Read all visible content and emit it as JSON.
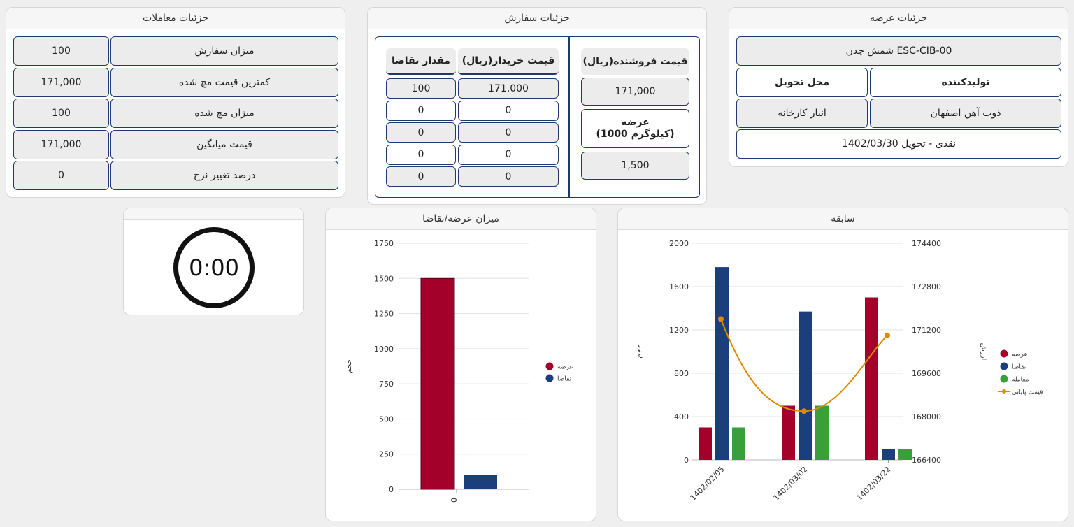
{
  "transactions": {
    "title": "جزئیات معاملات",
    "rows": [
      {
        "label": "میزان سفارش",
        "value": "100"
      },
      {
        "label": "کمترین قیمت مچ شده",
        "value": "171,000"
      },
      {
        "label": "میزان مچ شده",
        "value": "100"
      },
      {
        "label": "قیمت میانگین",
        "value": "171,000"
      },
      {
        "label": "درصد تغییر نرخ",
        "value": "0"
      }
    ]
  },
  "order": {
    "title": "جزئیات سفارش",
    "seller_header": "قیمت فروشنده(ریال)",
    "seller_price": "171,000",
    "supply_label": "عرضه",
    "supply_unit": "(1000 کیلوگرم)",
    "supply_value": "1,500",
    "buyer_price_header": "قیمت خریدار(ریال)",
    "demand_qty_header": "مقدار تقاضا",
    "rows": [
      {
        "price": "171,000",
        "qty": "100"
      },
      {
        "price": "0",
        "qty": "0"
      },
      {
        "price": "0",
        "qty": "0"
      },
      {
        "price": "0",
        "qty": "0"
      },
      {
        "price": "0",
        "qty": "0"
      }
    ]
  },
  "supply": {
    "title": "جزئیات عرضه",
    "product": "شمش چدن ESC-CIB-00",
    "producer_header": "تولیدکننده",
    "delivery_header": "محل تحویل",
    "producer": "ذوب آهن اصفهان",
    "delivery": "انبار کارخانه",
    "terms": "نقدی - تحویل 1402/03/30"
  },
  "timer": {
    "value": "0:00"
  },
  "colors": {
    "supply": "#a3002a",
    "demand": "#1b3f7c",
    "trade": "#3a9e3a",
    "price": "#e08a00"
  },
  "chart_data": [
    {
      "type": "bar",
      "title": "میزان عرضه/تقاضا",
      "ylabel": "حجم",
      "categories": [
        "0"
      ],
      "ylim": [
        0,
        1750
      ],
      "yticks": [
        0,
        250,
        500,
        750,
        1000,
        1250,
        1500,
        1750
      ],
      "series": [
        {
          "name": "عرضه",
          "values": [
            1500
          ]
        },
        {
          "name": "تقاضا",
          "values": [
            100
          ]
        }
      ],
      "legend": "right"
    },
    {
      "type": "bar",
      "title": "سابقه",
      "ylabel": "حجم",
      "y2label": "ارزش",
      "categories": [
        "1402/02/05",
        "1402/03/02",
        "1402/03/22"
      ],
      "ylim": [
        0,
        2000
      ],
      "yticks": [
        0,
        400,
        800,
        1200,
        1600,
        2000
      ],
      "y2lim": [
        166400,
        174400
      ],
      "y2ticks": [
        166400,
        168000,
        169600,
        171200,
        172800,
        174400
      ],
      "series": [
        {
          "name": "عرضه",
          "values": [
            300,
            500,
            1500
          ]
        },
        {
          "name": "تقاضا",
          "values": [
            1780,
            1370,
            100
          ]
        },
        {
          "name": "معامله",
          "values": [
            300,
            500,
            100
          ]
        }
      ],
      "line_series": {
        "name": "قیمت پایانی",
        "values": [
          171600,
          168200,
          171000
        ]
      },
      "legend": "right"
    }
  ]
}
